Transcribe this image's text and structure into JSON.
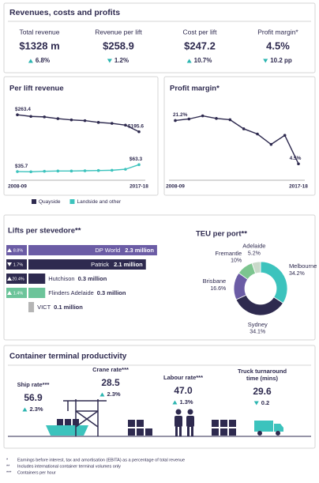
{
  "header": {
    "title": "Revenues, costs and profits"
  },
  "kpis": [
    {
      "label": "Total revenue",
      "value": "$1328 m",
      "change": "6.8%",
      "direction": "up"
    },
    {
      "label": "Revenue per lift",
      "value": "$258.9",
      "change": "1.2%",
      "direction": "down"
    },
    {
      "label": "Cost per lift",
      "value": "$247.2",
      "change": "10.7%",
      "direction": "up"
    },
    {
      "label": "Profit margin*",
      "value": "4.5%",
      "change": "10.2 pp",
      "direction": "down"
    }
  ],
  "chart_data": [
    {
      "type": "line",
      "title": "Per lift revenue",
      "categories": [
        "2008-09",
        null,
        null,
        null,
        null,
        null,
        null,
        null,
        null,
        "2017-18"
      ],
      "ylim": [
        20,
        280
      ],
      "legend": "bottom",
      "series": [
        {
          "name": "Quayside",
          "color": "#2e2a4f",
          "values": [
            263.4,
            257,
            255,
            248,
            243,
            240,
            233,
            229,
            222,
            195.6
          ],
          "value_labels": [
            "$263.4",
            null,
            null,
            null,
            null,
            null,
            null,
            null,
            null,
            "$195.6"
          ]
        },
        {
          "name": "Landside and other",
          "color": "#3cc3bd",
          "values": [
            35.7,
            35,
            37,
            38,
            38,
            39,
            40,
            41,
            45,
            63.3
          ],
          "value_labels": [
            "$35.7",
            null,
            null,
            null,
            null,
            null,
            null,
            null,
            null,
            "$63.3"
          ]
        }
      ]
    },
    {
      "type": "line",
      "title": "Profit margin*",
      "categories": [
        "2008-09",
        null,
        null,
        null,
        null,
        null,
        null,
        null,
        null,
        "2017-18"
      ],
      "ylim": [
        0,
        25
      ],
      "series": [
        {
          "color": "#2e2a4f",
          "values": [
            21.2,
            21.8,
            23.0,
            22.0,
            21.5,
            18.0,
            16.0,
            12.0,
            15.5,
            4.5
          ],
          "value_labels": [
            "21.2%",
            null,
            null,
            null,
            null,
            null,
            null,
            null,
            null,
            "4.5%"
          ]
        }
      ]
    },
    {
      "type": "hbar",
      "title": "Lifts per stevedore**",
      "categories": [
        "DP World",
        "Patrick",
        "Hutchison",
        "Flinders Adelaide",
        "VICT"
      ],
      "values": [
        2.3,
        2.1,
        0.3,
        0.3,
        0.1
      ],
      "value_labels": [
        "2.3 million",
        "2.1 million",
        "0.3 million",
        "0.3 million",
        "0.1 million"
      ],
      "colors": [
        "#6b5ca5",
        "#2e2a4f",
        "#2e2a4f",
        "#6cc49a",
        "#b5b5b5"
      ],
      "xlim": [
        0,
        2.4
      ],
      "change_labels": [
        "8.8%",
        "1.7%",
        "20.4%",
        "1.4%",
        null
      ],
      "change_directions": [
        "up",
        "down",
        "up",
        "up",
        null
      ]
    },
    {
      "type": "donut",
      "title": "TEU per port**",
      "categories": [
        "Melbourne",
        "Sydney",
        "Brisbane",
        "Fremantle",
        "Adelaide"
      ],
      "values": [
        34.2,
        34.1,
        16.6,
        10,
        5.2
      ],
      "value_labels": [
        "34.2%",
        "34.1%",
        "16.6%",
        "10%",
        "5.2%"
      ],
      "colors": [
        "#3cc3bd",
        "#2e2a4f",
        "#6b5ca5",
        "#7cc58f",
        "#c9d9c9"
      ]
    }
  ],
  "productivity": {
    "title": "Container terminal productivity",
    "items": [
      {
        "label_lines": [
          "Ship rate***"
        ],
        "value": "56.9",
        "change": "2.3%",
        "direction": "up"
      },
      {
        "label_lines": [
          "Crane rate***"
        ],
        "value": "28.5",
        "change": "2.3%",
        "direction": "up"
      },
      {
        "label_lines": [
          "Labour rate***"
        ],
        "value": "47.0",
        "change": "1.3%",
        "direction": "up"
      },
      {
        "label_lines": [
          "Truck turnaround",
          "time (mins)"
        ],
        "value": "29.6",
        "change": "0.2",
        "direction": "down"
      }
    ]
  },
  "footnotes": [
    {
      "mark": "*",
      "text": "Earnings before interest, tax and amortisation (EBITA) as a percentage of total revenue"
    },
    {
      "mark": "**",
      "text": "Includes international container terminal volumes only"
    },
    {
      "mark": "***",
      "text": "Containers per hour"
    }
  ]
}
